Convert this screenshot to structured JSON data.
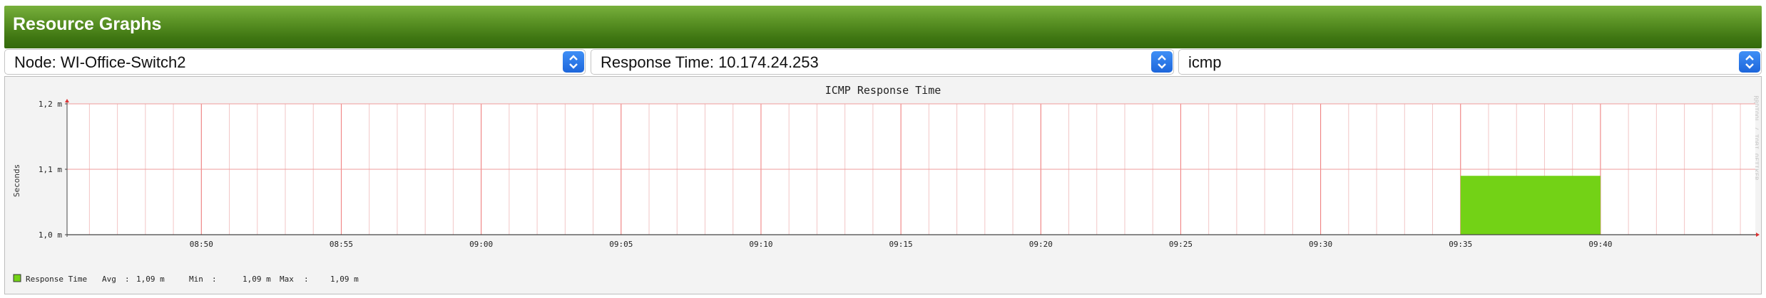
{
  "header": {
    "title": "Resource Graphs"
  },
  "selectors": {
    "node": "Node: WI-Office-Switch2",
    "resource": "Response Time: 10.174.24.253",
    "graph": "icmp"
  },
  "watermark": "RRDTOOL / TOBI OETIKER",
  "chart_data": {
    "type": "area",
    "title": "ICMP Response Time",
    "ylabel": "Seconds",
    "xlabel": "",
    "x_ticks": [
      "08:50",
      "08:55",
      "09:00",
      "09:05",
      "09:10",
      "09:15",
      "09:20",
      "09:25",
      "09:30",
      "09:35",
      "09:40"
    ],
    "y_ticks": [
      "1,0 m",
      "1,1 m",
      "1,2 m"
    ],
    "ylim": [
      0.001,
      0.0012
    ],
    "xlim": [
      "08:45:12",
      "09:45:32"
    ],
    "grid": true,
    "series": [
      {
        "name": "Response Time",
        "color": "#73d216",
        "segments": [
          {
            "start": "09:35",
            "end": "09:40",
            "value": 0.00109
          }
        ]
      }
    ],
    "legend": {
      "label": "Response Time",
      "color": "#73d216",
      "stats": [
        {
          "label": "Avg",
          "value": "1,09 m"
        },
        {
          "label": "Min",
          "value": "1,09 m"
        },
        {
          "label": "Max",
          "value": "1,09 m"
        }
      ]
    }
  }
}
